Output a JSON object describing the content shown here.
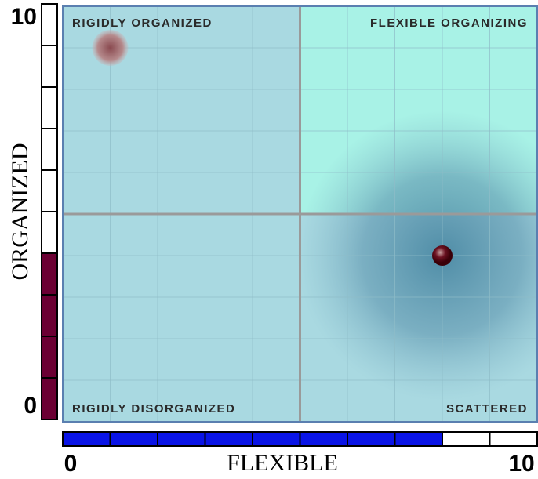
{
  "chart_data": {
    "type": "scatter",
    "xlabel": "FLEXIBLE",
    "ylabel": "ORGANIZED",
    "xlim": [
      0,
      10
    ],
    "ylim": [
      0,
      10
    ],
    "xticks": [
      0,
      10
    ],
    "yticks": [
      0,
      10
    ],
    "grid": true,
    "quadrant_labels": {
      "top_left": "RIGIDLY ORGANIZED",
      "top_right": "FLEXIBLE ORGANIZING",
      "bottom_left": "RIGIDLY DISORGANIZED",
      "bottom_right": "SCATTERED"
    },
    "colors": {
      "quadrant": "#a9d9e1",
      "highlight_quadrant": "#a8f2e6",
      "organized_bar": "#6b0033",
      "flexible_bar": "#0a14e6"
    },
    "x": [
      1,
      8
    ],
    "values": [
      9,
      4
    ]
  }
}
